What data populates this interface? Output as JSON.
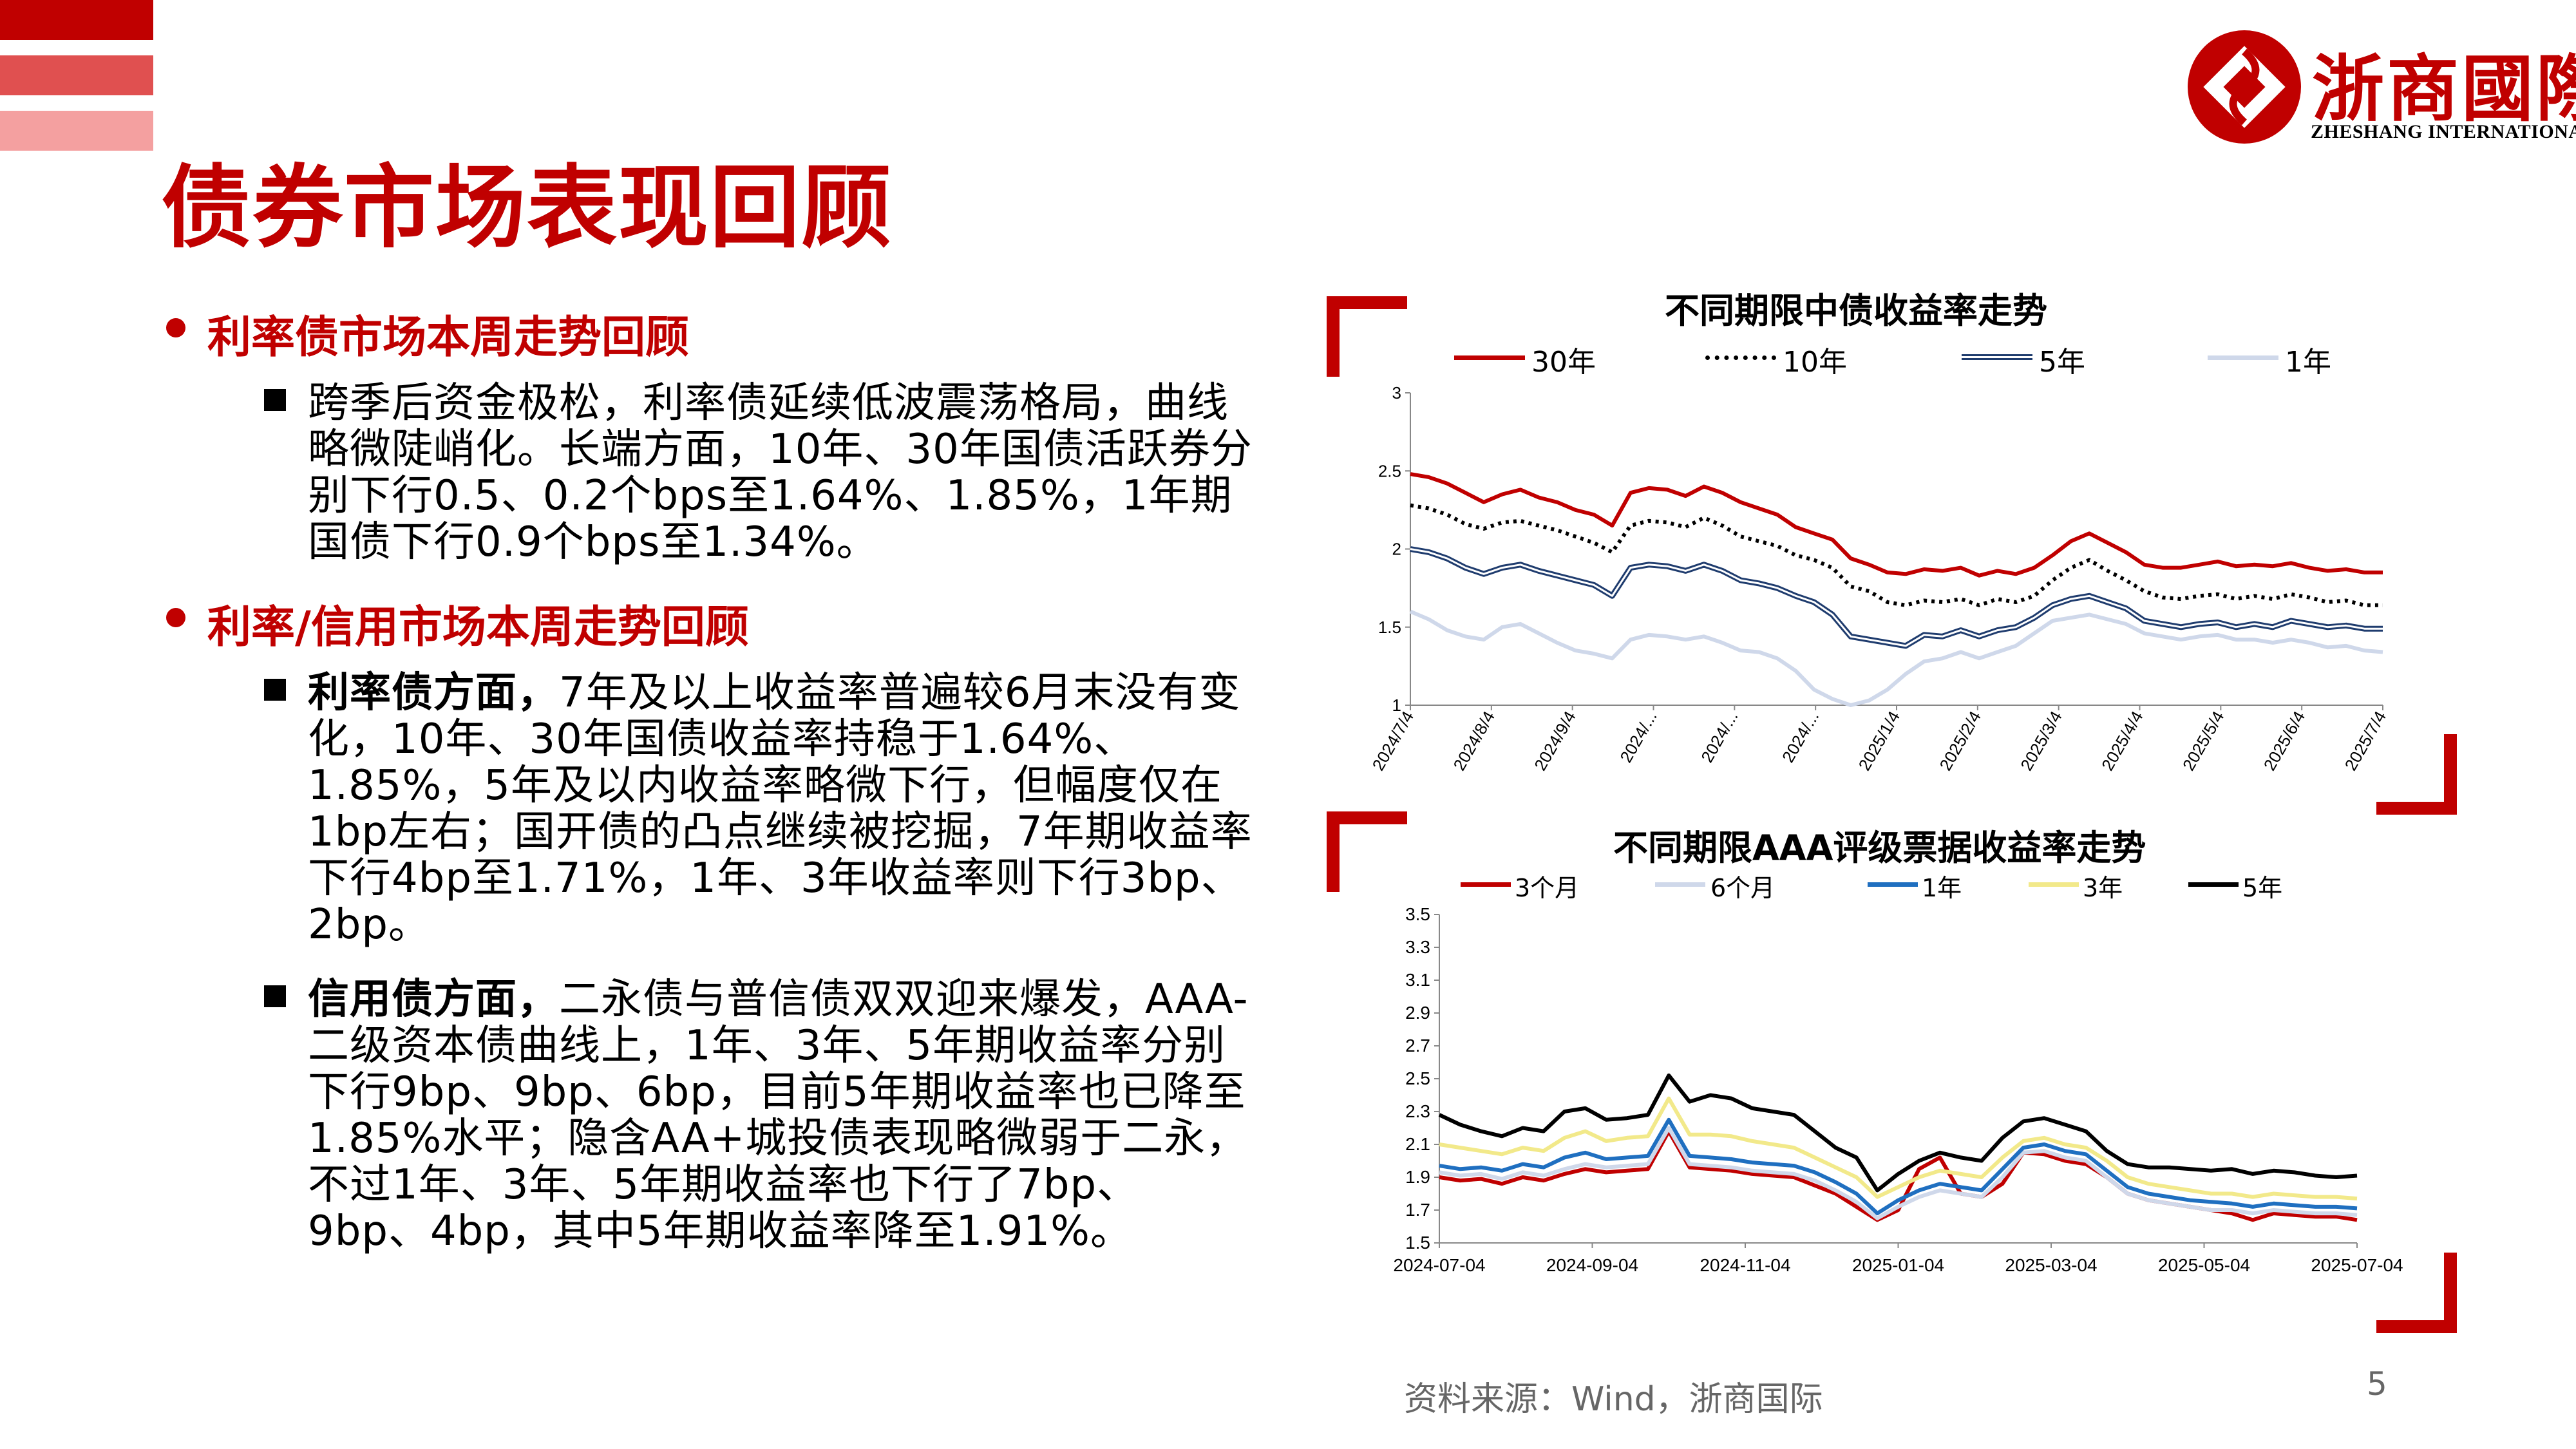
{
  "page": {
    "title": "债券市场表现回顾",
    "number": "5",
    "source": "资料来源：Wind，浙商国际"
  },
  "logo": {
    "cn": "浙商國際",
    "en": "ZHESHANG INTERNATIONAL"
  },
  "colors": {
    "brand": "#c00000",
    "bar_mid": "#e05050",
    "bar_light": "#f4a0a0"
  },
  "sections": [
    {
      "heading": "利率债市场本周走势回顾",
      "bullets": [
        {
          "bold": "",
          "text": "跨季后资金极松，利率债延续低波震荡格局，曲线略微陡峭化。长端方面，10年、30年国债活跃券分别下行0.5、0.2个bps至1.64%、1.85%，1年期国债下行0.9个bps至1.34%。"
        }
      ]
    },
    {
      "heading": "利率/信用市场本周走势回顾",
      "bullets": [
        {
          "bold": "利率债方面，",
          "text": "7年及以上收益率普遍较6月末没有变化，10年、30年国债收益率持稳于1.64%、1.85%，5年及以内收益率略微下行，但幅度仅在1bp左右；国开债的凸点继续被挖掘，7年期收益率下行4bp至1.71%，1年、3年收益率则下行3bp、2bp。"
        },
        {
          "bold": "信用债方面，",
          "text": "二永债与普信债双双迎来爆发，AAA-二级资本债曲线上，1年、3年、5年期收益率分别下行9bp、9bp、6bp，目前5年期收益率也已降至1.85%水平；隐含AA+城投债表现略微弱于二永，不过1年、3年、5年期收益率也下行了7bp、9bp、4bp，其中5年期收益率降至1.91%。"
        }
      ]
    }
  ],
  "chart_data": [
    {
      "type": "line",
      "title": "不同期限中债收益率走势",
      "x_ticks": [
        "2024/7/4",
        "2024/8/4",
        "2024/9/4",
        "2024/...",
        "2024/...",
        "2024/...",
        "2025/1/4",
        "2025/2/4",
        "2025/3/4",
        "2025/4/4",
        "2025/5/4",
        "2025/6/4",
        "2025/7/4"
      ],
      "ylim": [
        1,
        3
      ],
      "y_ticks": [
        "3",
        "2.5",
        "2",
        "1.5",
        "1"
      ],
      "series": [
        {
          "name": "30年",
          "color": "#c00000",
          "style": "solid",
          "values": [
            2.48,
            2.46,
            2.42,
            2.36,
            2.3,
            2.35,
            2.38,
            2.33,
            2.3,
            2.25,
            2.22,
            2.15,
            2.36,
            2.39,
            2.38,
            2.34,
            2.4,
            2.36,
            2.3,
            2.26,
            2.22,
            2.14,
            2.1,
            2.06,
            1.94,
            1.9,
            1.85,
            1.84,
            1.87,
            1.86,
            1.88,
            1.83,
            1.86,
            1.84,
            1.88,
            1.96,
            2.05,
            2.1,
            2.04,
            1.98,
            1.9,
            1.88,
            1.88,
            1.9,
            1.92,
            1.89,
            1.9,
            1.89,
            1.91,
            1.88,
            1.86,
            1.87,
            1.85,
            1.85
          ]
        },
        {
          "name": "10年",
          "color": "#000000",
          "style": "dotted",
          "values": [
            2.28,
            2.26,
            2.22,
            2.16,
            2.13,
            2.17,
            2.18,
            2.15,
            2.12,
            2.08,
            2.04,
            1.98,
            2.15,
            2.18,
            2.17,
            2.14,
            2.2,
            2.15,
            2.08,
            2.05,
            2.02,
            1.96,
            1.93,
            1.88,
            1.76,
            1.73,
            1.66,
            1.64,
            1.67,
            1.66,
            1.68,
            1.64,
            1.68,
            1.66,
            1.7,
            1.8,
            1.88,
            1.93,
            1.86,
            1.8,
            1.73,
            1.69,
            1.68,
            1.7,
            1.71,
            1.68,
            1.7,
            1.68,
            1.71,
            1.69,
            1.66,
            1.67,
            1.64,
            1.64
          ]
        },
        {
          "name": "5年",
          "color": "#1f3c6e",
          "style": "double",
          "values": [
            2.0,
            1.98,
            1.94,
            1.88,
            1.84,
            1.88,
            1.9,
            1.86,
            1.83,
            1.8,
            1.77,
            1.7,
            1.88,
            1.9,
            1.89,
            1.86,
            1.9,
            1.86,
            1.8,
            1.78,
            1.75,
            1.7,
            1.66,
            1.58,
            1.44,
            1.42,
            1.4,
            1.38,
            1.45,
            1.44,
            1.48,
            1.44,
            1.48,
            1.5,
            1.56,
            1.64,
            1.68,
            1.7,
            1.66,
            1.62,
            1.54,
            1.52,
            1.5,
            1.52,
            1.53,
            1.5,
            1.52,
            1.5,
            1.54,
            1.52,
            1.5,
            1.51,
            1.49,
            1.49
          ]
        },
        {
          "name": "1年",
          "color": "#cfd8ea",
          "style": "solid",
          "values": [
            1.6,
            1.55,
            1.48,
            1.44,
            1.42,
            1.5,
            1.52,
            1.46,
            1.4,
            1.35,
            1.33,
            1.3,
            1.42,
            1.45,
            1.44,
            1.42,
            1.44,
            1.4,
            1.35,
            1.34,
            1.3,
            1.22,
            1.1,
            1.04,
            1.0,
            1.03,
            1.1,
            1.2,
            1.28,
            1.3,
            1.34,
            1.3,
            1.34,
            1.38,
            1.46,
            1.54,
            1.56,
            1.58,
            1.55,
            1.52,
            1.46,
            1.44,
            1.42,
            1.44,
            1.45,
            1.42,
            1.42,
            1.4,
            1.42,
            1.4,
            1.37,
            1.38,
            1.35,
            1.34
          ]
        }
      ]
    },
    {
      "type": "line",
      "title": "不同期限AAA评级票据收益率走势",
      "x_ticks": [
        "2024-07-04",
        "2024-09-04",
        "2024-11-04",
        "2025-01-04",
        "2025-03-04",
        "2025-05-04",
        "2025-07-04"
      ],
      "ylim": [
        1.5,
        3.5
      ],
      "y_ticks": [
        "3.5",
        "3.3",
        "3.1",
        "2.9",
        "2.7",
        "2.5",
        "2.3",
        "2.1",
        "1.9",
        "1.7",
        "1.5"
      ],
      "series": [
        {
          "name": "3个月",
          "color": "#c00000",
          "values": [
            1.9,
            1.88,
            1.89,
            1.86,
            1.9,
            1.88,
            1.92,
            1.95,
            1.93,
            1.94,
            1.95,
            2.18,
            1.96,
            1.95,
            1.94,
            1.92,
            1.91,
            1.9,
            1.85,
            1.8,
            1.72,
            1.64,
            1.7,
            1.95,
            2.02,
            1.8,
            1.78,
            1.86,
            2.05,
            2.04,
            2.0,
            1.98,
            1.9,
            1.8,
            1.76,
            1.74,
            1.72,
            1.7,
            1.68,
            1.64,
            1.68,
            1.67,
            1.66,
            1.66,
            1.64
          ]
        },
        {
          "name": "6个月",
          "color": "#cfd8ea",
          "values": [
            1.93,
            1.91,
            1.92,
            1.89,
            1.93,
            1.91,
            1.95,
            1.98,
            1.96,
            1.97,
            1.98,
            2.2,
            1.98,
            1.97,
            1.96,
            1.94,
            1.93,
            1.92,
            1.88,
            1.82,
            1.75,
            1.65,
            1.72,
            1.78,
            1.82,
            1.8,
            1.78,
            1.9,
            2.05,
            2.06,
            2.02,
            2.0,
            1.9,
            1.8,
            1.76,
            1.74,
            1.72,
            1.7,
            1.7,
            1.68,
            1.7,
            1.69,
            1.68,
            1.68,
            1.67
          ]
        },
        {
          "name": "1年",
          "color": "#1f6fc0",
          "values": [
            1.97,
            1.95,
            1.96,
            1.94,
            1.98,
            1.96,
            2.02,
            2.05,
            2.01,
            2.02,
            2.03,
            2.25,
            2.03,
            2.02,
            2.01,
            1.99,
            1.98,
            1.97,
            1.93,
            1.87,
            1.8,
            1.68,
            1.76,
            1.82,
            1.86,
            1.84,
            1.82,
            1.95,
            2.08,
            2.1,
            2.06,
            2.04,
            1.94,
            1.84,
            1.8,
            1.78,
            1.76,
            1.75,
            1.74,
            1.72,
            1.74,
            1.73,
            1.72,
            1.72,
            1.71
          ]
        },
        {
          "name": "3年",
          "color": "#f2e98a",
          "values": [
            2.1,
            2.08,
            2.06,
            2.04,
            2.08,
            2.06,
            2.14,
            2.18,
            2.12,
            2.14,
            2.15,
            2.38,
            2.16,
            2.16,
            2.15,
            2.12,
            2.1,
            2.08,
            2.02,
            1.96,
            1.9,
            1.78,
            1.84,
            1.9,
            1.94,
            1.92,
            1.9,
            2.02,
            2.12,
            2.14,
            2.1,
            2.08,
            2.0,
            1.9,
            1.86,
            1.84,
            1.82,
            1.8,
            1.8,
            1.78,
            1.8,
            1.79,
            1.78,
            1.78,
            1.77
          ]
        },
        {
          "name": "5年",
          "color": "#000000",
          "values": [
            2.28,
            2.22,
            2.18,
            2.15,
            2.2,
            2.18,
            2.3,
            2.32,
            2.25,
            2.26,
            2.28,
            2.52,
            2.36,
            2.4,
            2.38,
            2.32,
            2.3,
            2.28,
            2.18,
            2.08,
            2.02,
            1.82,
            1.92,
            2.0,
            2.05,
            2.02,
            2.0,
            2.14,
            2.24,
            2.26,
            2.22,
            2.18,
            2.06,
            1.98,
            1.96,
            1.96,
            1.95,
            1.94,
            1.95,
            1.92,
            1.94,
            1.93,
            1.91,
            1.9,
            1.91
          ]
        }
      ]
    }
  ]
}
